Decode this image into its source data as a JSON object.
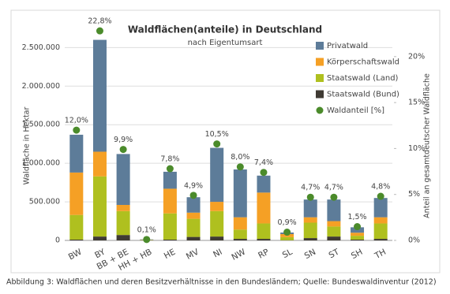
{
  "chart_data": {
    "type": "bar",
    "stacked": true,
    "title": "Waldflächen(anteile) in Deutschland",
    "subtitle": "nach Eigentumsart",
    "y_label": "Waldfläche in Hektar",
    "y2_label": "Anteil an gesamtdeutscher Waldfläche",
    "caption": "Abbildung 3: Waldflächen und deren Besitzverhältnisse in den Bundesländern; Quelle: Bundeswaldinventur (2012)",
    "categories": [
      "BW",
      "BY",
      "BB + BE",
      "HH + HB",
      "HE",
      "MV",
      "NI",
      "NW",
      "RP",
      "SL",
      "SN",
      "ST",
      "SH",
      "TH"
    ],
    "series": [
      {
        "name": "Staatswald (Bund)",
        "color": "#3f3a33",
        "values": [
          10000,
          50000,
          70000,
          2000,
          10000,
          45000,
          50000,
          20000,
          20000,
          2000,
          30000,
          50000,
          10000,
          20000
        ]
      },
      {
        "name": "Staatswald (Land)",
        "color": "#afc01f",
        "values": [
          320000,
          780000,
          310000,
          3000,
          340000,
          235000,
          330000,
          120000,
          200000,
          40000,
          200000,
          130000,
          50000,
          200000
        ]
      },
      {
        "name": "Körperschaftswald",
        "color": "#f5a025",
        "values": [
          550000,
          320000,
          80000,
          3000,
          320000,
          80000,
          120000,
          160000,
          400000,
          40000,
          70000,
          70000,
          40000,
          80000
        ]
      },
      {
        "name": "Privatwald",
        "color": "#5d7c99",
        "values": [
          490000,
          1450000,
          660000,
          5000,
          220000,
          200000,
          700000,
          620000,
          220000,
          20000,
          230000,
          280000,
          70000,
          250000
        ]
      },
      {
        "name": "Waldanteil [%]",
        "type": "scatter",
        "axis": "y2",
        "color": "#4b8b2b",
        "values": [
          12.0,
          22.8,
          9.9,
          0.1,
          7.8,
          4.9,
          10.5,
          8.0,
          7.4,
          0.9,
          4.7,
          4.7,
          1.5,
          4.8
        ],
        "value_labels": [
          "12,0%",
          "22,8%",
          "9,9%",
          "0,1%",
          "7,8%",
          "4,9%",
          "10,5%",
          "8,0%",
          "7,4%",
          "0,9%",
          "4,7%",
          "4,7%",
          "1,5%",
          "4,8%"
        ]
      }
    ],
    "ylim": [
      0,
      2800000
    ],
    "yticks": [
      0,
      {
        "value": 500000,
        "label": "500.000"
      },
      {
        "value": 1000000,
        "label": "1.000.000"
      },
      {
        "value": 1500000,
        "label": "1.500.000"
      },
      {
        "value": 2000000,
        "label": "2.000.000"
      },
      {
        "value": 2500000,
        "label": "2.500.000"
      }
    ],
    "y2lim": [
      0,
      23.5
    ],
    "y2ticks": [
      {
        "value": 0,
        "label": "0%"
      },
      {
        "value": 5,
        "label": "5%"
      },
      {
        "value": 10,
        "label": "10%"
      },
      {
        "value": 15,
        "label": "15%"
      },
      {
        "value": 20,
        "label": "20%"
      }
    ],
    "legend": "right"
  }
}
